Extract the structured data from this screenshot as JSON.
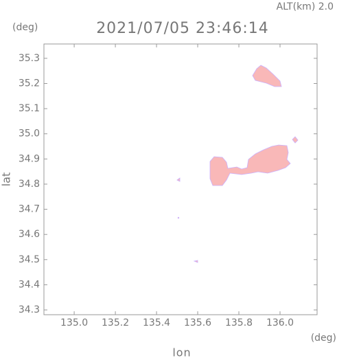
{
  "chart_data": {
    "type": "map",
    "title": "2021/07/05 23:46:14",
    "subtitle": "ALT(km) 2.0",
    "x_label": "lon",
    "y_label": "lat",
    "x_unit": "(deg)",
    "y_unit": "(deg)",
    "xlim": [
      134.853,
      136.18
    ],
    "ylim": [
      34.281,
      35.357
    ],
    "xticks": [
      {
        "value": 135,
        "label": "135.0"
      },
      135.2,
      135.4,
      135.6,
      135.8,
      {
        "value": 136,
        "label": "136.0"
      }
    ],
    "yticks": [
      34.3,
      34.4,
      34.5,
      34.6,
      34.7,
      34.8,
      34.9,
      {
        "value": 35,
        "label": "35.0"
      },
      35.1,
      35.2,
      35.3
    ]
  }
}
